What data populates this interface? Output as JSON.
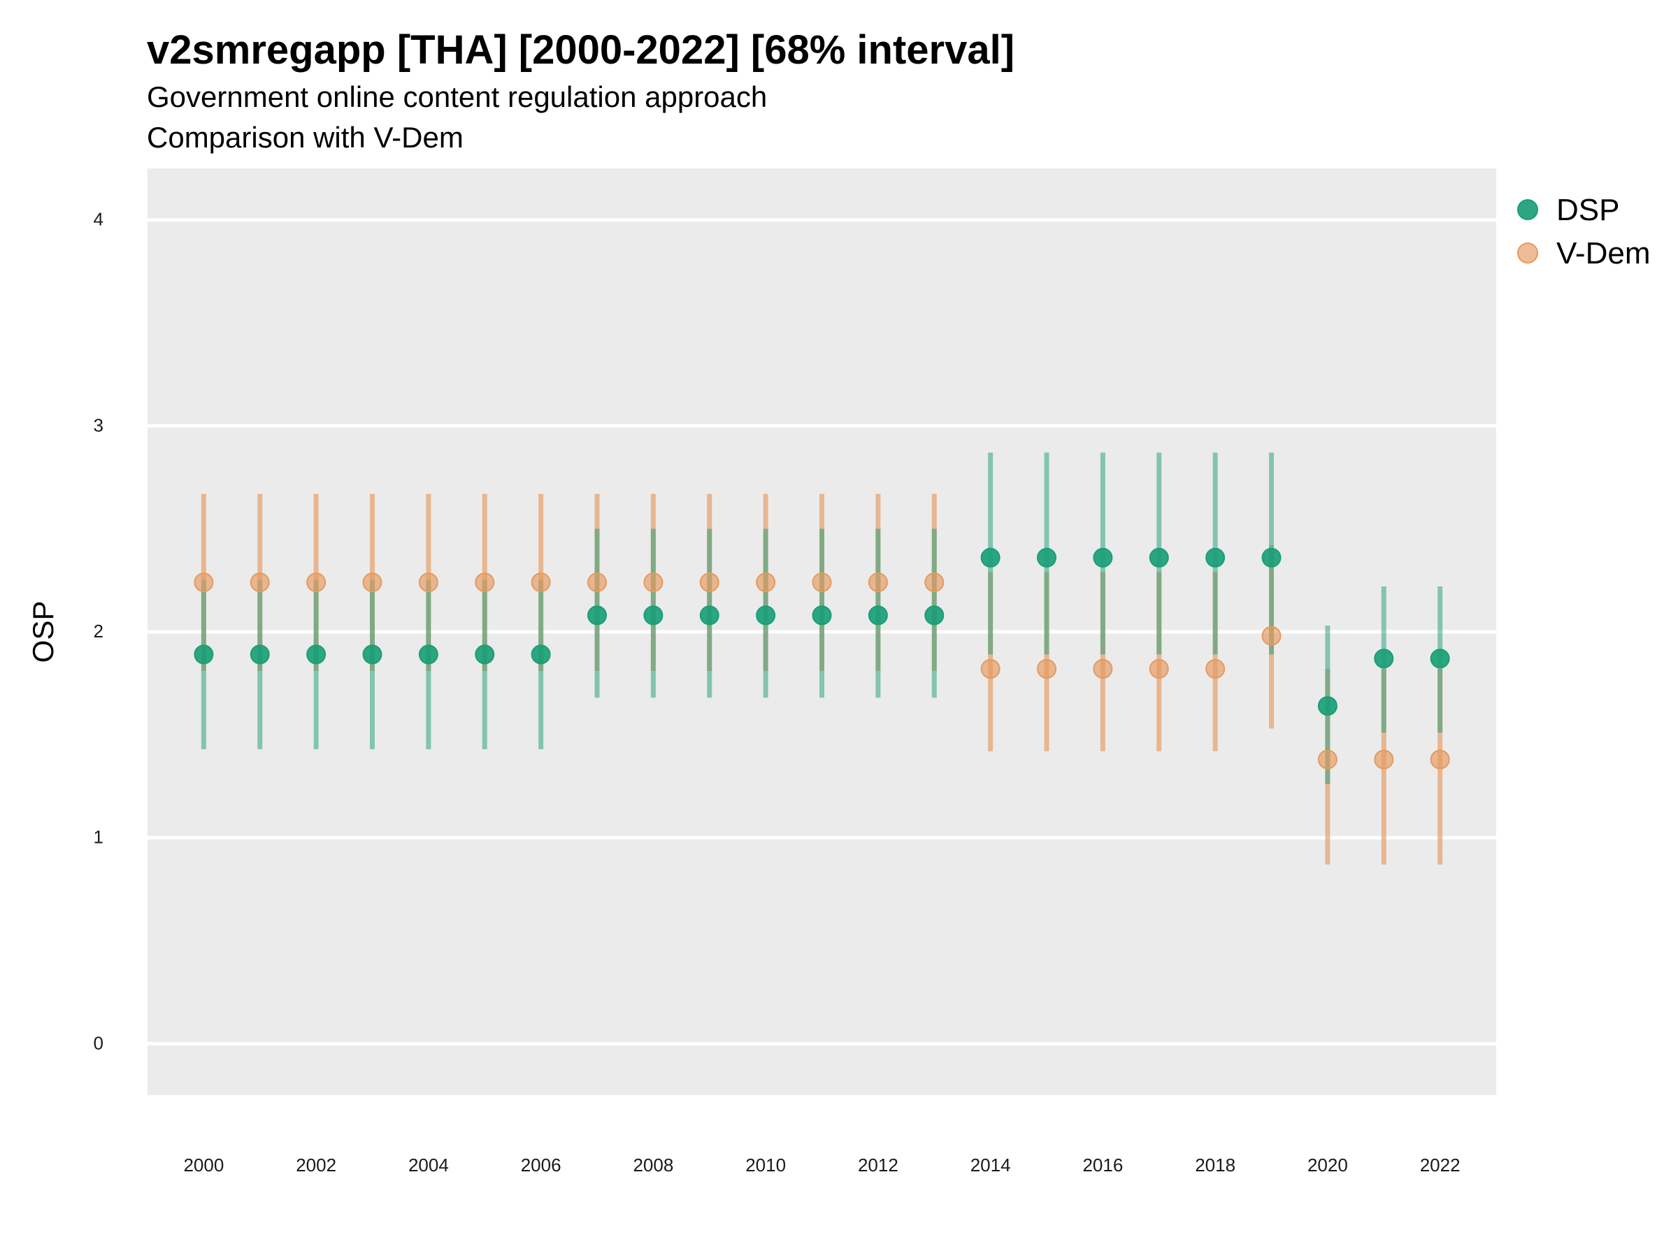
{
  "title": "v2smregapp [THA] [2000-2022] [68% interval]",
  "subtitle_1": "Government online content regulation approach",
  "subtitle_2": "Comparison with V-Dem",
  "colors": {
    "panel": "#EBEBEB",
    "grid": "#FFFFFF",
    "dsp": "#1B9E77",
    "vdem": "#E59A5F"
  },
  "chart_data": {
    "type": "scatter",
    "ylabel": "OSP",
    "xlabel": "",
    "ylim": [
      -0.25,
      4.25
    ],
    "xlim": [
      1999,
      2023
    ],
    "yticks": [
      0,
      1,
      2,
      3,
      4
    ],
    "xticks": [
      2000,
      2002,
      2004,
      2006,
      2008,
      2010,
      2012,
      2014,
      2016,
      2018,
      2020,
      2022
    ],
    "grid": true,
    "legend_position": "right",
    "x": [
      2000,
      2001,
      2002,
      2003,
      2004,
      2005,
      2006,
      2007,
      2008,
      2009,
      2010,
      2011,
      2012,
      2013,
      2014,
      2015,
      2016,
      2017,
      2018,
      2019,
      2020,
      2021,
      2022
    ],
    "series": [
      {
        "name": "DSP",
        "values": [
          1.89,
          1.89,
          1.89,
          1.89,
          1.89,
          1.89,
          1.89,
          2.08,
          2.08,
          2.08,
          2.08,
          2.08,
          2.08,
          2.08,
          2.36,
          2.36,
          2.36,
          2.36,
          2.36,
          2.36,
          1.64,
          1.87,
          1.87
        ],
        "lower": [
          1.43,
          1.43,
          1.43,
          1.43,
          1.43,
          1.43,
          1.43,
          1.68,
          1.68,
          1.68,
          1.68,
          1.68,
          1.68,
          1.68,
          1.89,
          1.89,
          1.89,
          1.89,
          1.89,
          1.89,
          1.26,
          1.51,
          1.51
        ],
        "upper": [
          2.25,
          2.25,
          2.25,
          2.25,
          2.25,
          2.25,
          2.25,
          2.5,
          2.5,
          2.5,
          2.5,
          2.5,
          2.5,
          2.5,
          2.87,
          2.87,
          2.87,
          2.87,
          2.87,
          2.87,
          2.03,
          2.22,
          2.22
        ]
      },
      {
        "name": "V-Dem",
        "values": [
          2.24,
          2.24,
          2.24,
          2.24,
          2.24,
          2.24,
          2.24,
          2.24,
          2.24,
          2.24,
          2.24,
          2.24,
          2.24,
          2.24,
          1.82,
          1.82,
          1.82,
          1.82,
          1.82,
          1.98,
          1.38,
          1.38,
          1.38
        ],
        "lower": [
          1.81,
          1.81,
          1.81,
          1.81,
          1.81,
          1.81,
          1.81,
          1.81,
          1.81,
          1.81,
          1.81,
          1.81,
          1.81,
          1.81,
          1.42,
          1.42,
          1.42,
          1.42,
          1.42,
          1.53,
          0.87,
          0.87,
          0.87
        ],
        "upper": [
          2.67,
          2.67,
          2.67,
          2.67,
          2.67,
          2.67,
          2.67,
          2.67,
          2.67,
          2.67,
          2.67,
          2.67,
          2.67,
          2.67,
          2.29,
          2.29,
          2.29,
          2.29,
          2.29,
          2.42,
          1.82,
          1.82,
          1.82
        ]
      }
    ]
  }
}
